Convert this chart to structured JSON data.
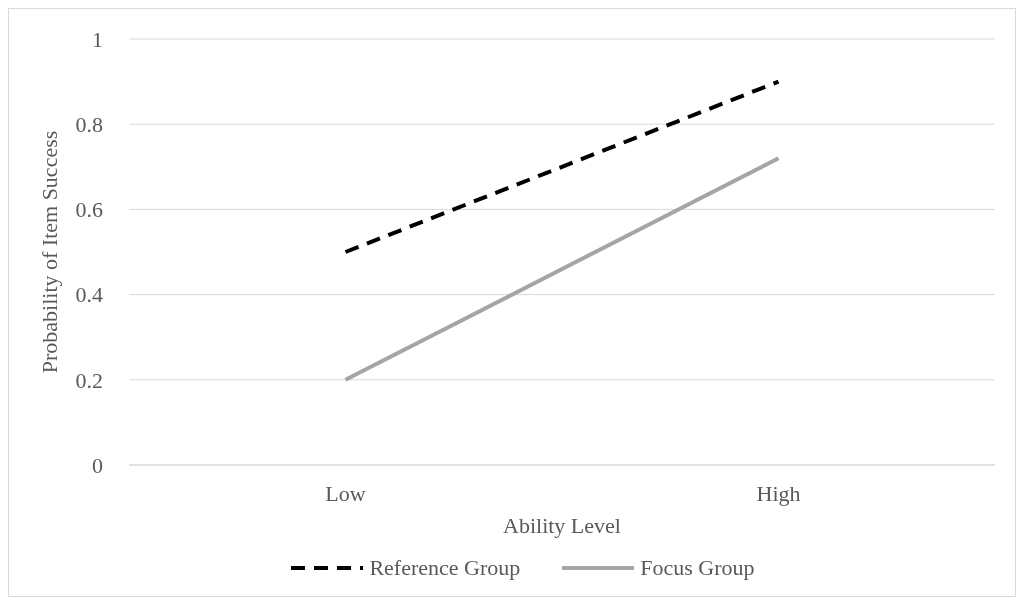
{
  "chart_data": {
    "type": "line",
    "xlabel": "Ability Level",
    "ylabel": "Probability of Item Success",
    "categories": [
      "Low",
      "High"
    ],
    "series": [
      {
        "name": "Reference Group",
        "color": "#000000",
        "line_style": "dashed",
        "values": [
          0.5,
          0.9
        ]
      },
      {
        "name": "Focus Group",
        "color": "#a5a5a5",
        "line_style": "solid",
        "values": [
          0.2,
          0.72
        ]
      }
    ],
    "ylim": [
      0,
      1
    ],
    "yticks": [
      0,
      0.2,
      0.4,
      0.6,
      0.8,
      1
    ],
    "grid": "y",
    "legend": "bottom",
    "marker": "none"
  }
}
